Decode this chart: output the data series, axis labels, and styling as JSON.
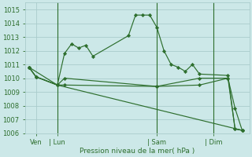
{
  "background_color": "#cce8e8",
  "grid_color": "#aacccc",
  "line_color": "#2d6e2d",
  "xlabel": "Pression niveau de la mer( hPa )",
  "ylim": [
    1006,
    1015.5
  ],
  "yticks": [
    1006,
    1007,
    1008,
    1009,
    1010,
    1011,
    1012,
    1013,
    1014,
    1015
  ],
  "series": [
    {
      "x": [
        0,
        1,
        4,
        5,
        6,
        7,
        8,
        9,
        14,
        15,
        16,
        17,
        18,
        19,
        20,
        21,
        22,
        23,
        24,
        28,
        29,
        30
      ],
      "y": [
        1010.8,
        1010.1,
        1009.5,
        1011.8,
        1012.5,
        1012.2,
        1012.4,
        1011.6,
        1013.1,
        1014.6,
        1014.6,
        1014.6,
        1013.7,
        1012.0,
        1011.0,
        1010.8,
        1010.5,
        1011.0,
        1010.3,
        1010.2,
        1006.3,
        1006.2
      ]
    },
    {
      "x": [
        0,
        1,
        4,
        5,
        18,
        24,
        28,
        29,
        30
      ],
      "y": [
        1010.8,
        1010.1,
        1009.5,
        1010.0,
        1009.4,
        1010.0,
        1010.0,
        1006.3,
        1006.2
      ]
    },
    {
      "x": [
        0,
        1,
        4,
        5,
        18,
        24,
        28,
        29,
        30
      ],
      "y": [
        1010.8,
        1010.1,
        1009.5,
        1009.5,
        1009.4,
        1009.5,
        1010.0,
        1007.8,
        1006.2
      ]
    },
    {
      "x": [
        0,
        4,
        30
      ],
      "y": [
        1010.8,
        1009.5,
        1006.2
      ]
    }
  ],
  "vline_positions": [
    4,
    18,
    26
  ],
  "xtick_positions": [
    1,
    4,
    18,
    26
  ],
  "xtick_labels": [
    "Ven",
    "Lun",
    "Sam",
    "Dim"
  ],
  "xlim": [
    -0.5,
    31
  ]
}
